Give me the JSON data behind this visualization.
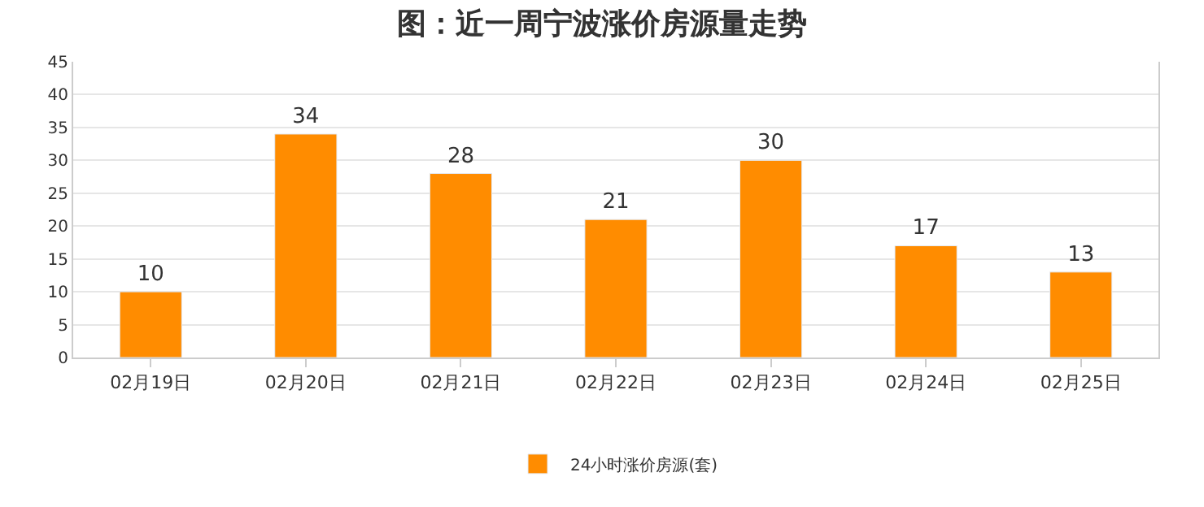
{
  "chart_data": {
    "type": "bar",
    "title": "图：近一周宁波涨价房源量走势",
    "categories": [
      "02月19日",
      "02月20日",
      "02月21日",
      "02月22日",
      "02月23日",
      "02月24日",
      "02月25日"
    ],
    "series": [
      {
        "name": "24小时涨价房源(套)",
        "color": "#ff8c00",
        "values": [
          10,
          34,
          28,
          21,
          30,
          17,
          13
        ]
      }
    ],
    "ylim": [
      0,
      45
    ],
    "yticks": [
      0,
      5,
      10,
      15,
      20,
      25,
      30,
      35,
      40,
      45
    ],
    "grid": "y",
    "legend": "bottom",
    "data_labels": true
  }
}
